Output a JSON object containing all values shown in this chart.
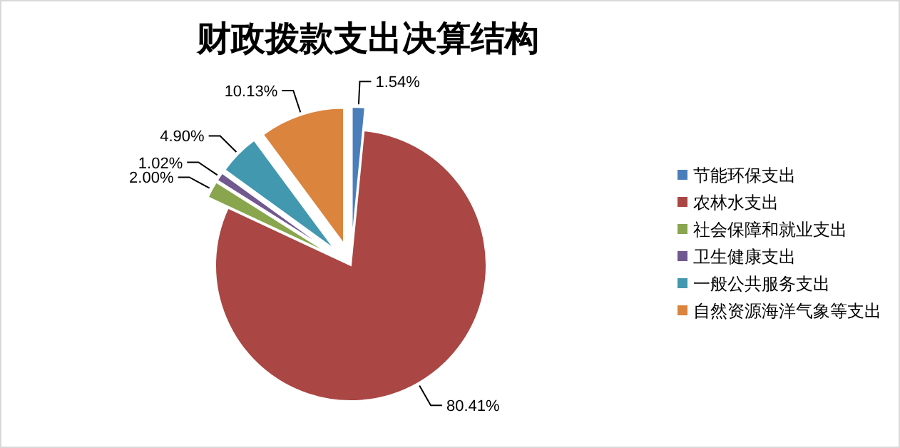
{
  "chart_data": {
    "type": "pie",
    "title": "财政拨款支出决算结构",
    "categories": [
      "节能环保支出",
      "农林水支出",
      "社会保障和就业支出",
      "卫生健康支出",
      "一般公共服务支出",
      "自然资源海洋气象等支出"
    ],
    "values": [
      1.54,
      80.41,
      2.0,
      1.02,
      4.9,
      10.13
    ],
    "colors": [
      "#4a7ebb",
      "#aa4643",
      "#89a54e",
      "#71588f",
      "#4198af",
      "#db843d"
    ],
    "value_labels": [
      "1.54%",
      "80.41%",
      "2.00%",
      "1.02%",
      "4.90%",
      "10.13%"
    ],
    "legend": "right"
  }
}
